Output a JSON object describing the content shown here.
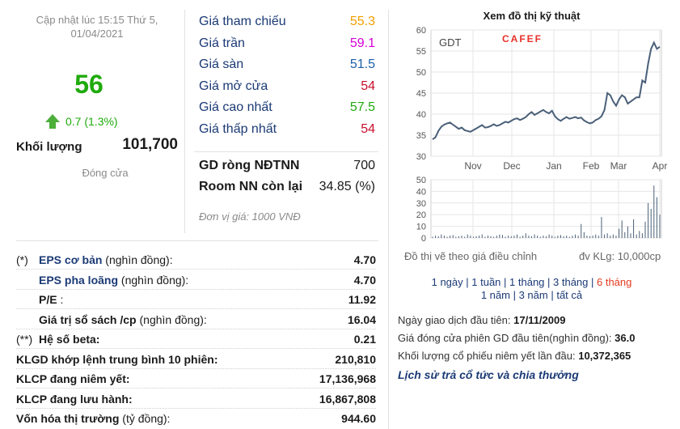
{
  "quote": {
    "updated_line1": "Cập nhật lúc 15:15 Thứ 5,",
    "updated_line2": "01/04/2021",
    "price": "56",
    "change": "0.7 (1.3%)",
    "volume_label": "Khối lượng",
    "volume_value": "101,700",
    "close_label": "Đóng cửa"
  },
  "price_list": [
    {
      "label": "Giá tham chiếu",
      "value": "55.3",
      "color": "#f0a000"
    },
    {
      "label": "Giá trần",
      "value": "59.1",
      "color": "#d600d6"
    },
    {
      "label": "Giá sàn",
      "value": "51.5",
      "color": "#1b5fa8"
    },
    {
      "label": "Giá mở cửa",
      "value": "54",
      "color": "#c8102e"
    },
    {
      "label": "Giá cao nhất",
      "value": "57.5",
      "color": "#1faa0c"
    },
    {
      "label": "Giá thấp nhất",
      "value": "54",
      "color": "#c8102e"
    }
  ],
  "foreign": {
    "net_label": "GD ròng NĐTNN",
    "net_value": "700",
    "room_label": "Room NN còn lại",
    "room_value": "34.85 (%)",
    "unit_note": "Đơn vị giá: 1000 VNĐ"
  },
  "stats": [
    {
      "prefix": "(*)",
      "name": "EPS cơ bản",
      "suffix": " (nghìn đồng):",
      "value": "4.70",
      "style": "blue"
    },
    {
      "prefix": "",
      "name": "EPS pha loãng",
      "suffix": " (nghìn đồng):",
      "value": "4.70",
      "style": "blue"
    },
    {
      "prefix": "",
      "name": "P/E",
      "suffix": " :",
      "value": "11.92",
      "style": "bold"
    },
    {
      "prefix": "",
      "name": "Giá trị sổ sách /cp",
      "suffix": " (nghìn đồng):",
      "value": "16.04",
      "style": "bold"
    },
    {
      "prefix": "(**)",
      "name": "Hệ số beta:",
      "suffix": "",
      "value": "0.21",
      "style": "bold"
    },
    {
      "prefix": "",
      "name": "KLGD khớp lệnh trung bình 10 phiên:",
      "suffix": "",
      "value": "210,810",
      "style": "bold",
      "full": true
    },
    {
      "prefix": "",
      "name": "KLCP đang niêm yết:",
      "suffix": "",
      "value": "17,136,968",
      "style": "bold",
      "full": true
    },
    {
      "prefix": "",
      "name": "KLCP đang lưu hành:",
      "suffix": "",
      "value": "16,867,808",
      "style": "bold",
      "full": true
    },
    {
      "prefix": "",
      "name": "Vốn hóa thị trường",
      "suffix": " (tỷ đồng):",
      "value": "944.60",
      "style": "bold",
      "full": true
    }
  ],
  "chart": {
    "title": "Xem đồ thị kỹ thuật",
    "ticker": "GDT",
    "brand": "CAFEF",
    "note_left": "Đồ thị vẽ theo giá điều chỉnh",
    "note_right": "đv KLg: 10,000cp",
    "line_color": "#4a5f78",
    "brand_color": "#e8312a"
  },
  "chart_data": {
    "type": "line",
    "x_ticks": [
      "Nov",
      "Dec",
      "Jan",
      "Feb",
      "Mar",
      "Apr"
    ],
    "price": {
      "ylim": [
        30,
        60
      ],
      "yticks": [
        30,
        35,
        40,
        45,
        50,
        55,
        60
      ],
      "values": [
        34,
        34.5,
        36,
        37,
        37.5,
        37.8,
        38,
        37.5,
        37,
        36.5,
        36.8,
        36.2,
        36,
        35.8,
        36.2,
        36.6,
        37,
        37.4,
        36.8,
        36.9,
        37.2,
        37.6,
        37.2,
        37.4,
        37.8,
        38.2,
        38,
        38.4,
        38.8,
        39,
        38.6,
        38.9,
        39.3,
        40,
        40.5,
        39.8,
        40.2,
        40.6,
        41,
        40.5,
        40.2,
        40.8,
        39.5,
        38.8,
        38.4,
        38.9,
        39.3,
        38.9,
        39.1,
        39.3,
        39.0,
        39.2,
        38.5,
        38.1,
        37.8,
        38.0,
        38.6,
        38.9,
        39.5,
        41,
        45,
        44.5,
        43,
        42,
        43.5,
        44.5,
        44,
        42.5,
        43,
        43.5,
        44,
        44,
        48,
        47.5,
        52,
        55.5,
        57,
        55.5,
        56
      ]
    },
    "volume": {
      "ylim": [
        0,
        50
      ],
      "yticks": [
        0,
        10,
        20,
        30,
        40,
        50
      ],
      "values": [
        1,
        2,
        1.5,
        3,
        2,
        1,
        2,
        2.5,
        1,
        1.5,
        2,
        1,
        3,
        2,
        1,
        1.5,
        2,
        3,
        1,
        2,
        1.5,
        1,
        2,
        3,
        2.5,
        1,
        2,
        1.5,
        2,
        3,
        1,
        2,
        4,
        2,
        1.5,
        3,
        2,
        1,
        2,
        1.5,
        3,
        2,
        1,
        2,
        2.5,
        1.5,
        2,
        1,
        2,
        3,
        2,
        12,
        5,
        2,
        1.5,
        2,
        3,
        2,
        18,
        3,
        4,
        2,
        3,
        2,
        8,
        15,
        5,
        10,
        4,
        16,
        3,
        6,
        4,
        14,
        30,
        25,
        45,
        35,
        20
      ]
    }
  },
  "periods": {
    "row1": [
      "1 ngày",
      "1 tuần",
      "1 tháng",
      "3 tháng",
      "6 tháng"
    ],
    "row2": [
      "1 năm",
      "3 năm",
      "tất cả"
    ],
    "active": "6 tháng"
  },
  "listing": {
    "first_day_label": "Ngày giao dịch đầu tiên:",
    "first_day_value": "17/11/2009",
    "first_price_label": "Giá đóng cửa phiên GD đầu tiên(nghìn đồng):",
    "first_price_value": "36.0",
    "first_volume_label": "Khối lượng cổ phiếu niêm yết lần đầu:",
    "first_volume_value": "10,372,365",
    "history_link": "Lịch sử trả cổ tức và chia thưởng"
  }
}
